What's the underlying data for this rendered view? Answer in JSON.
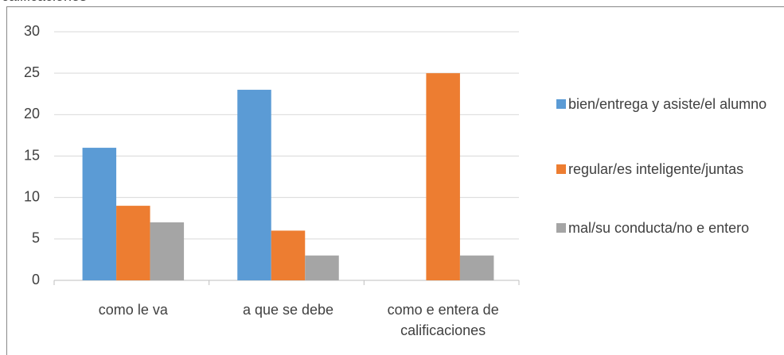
{
  "chart_data": {
    "type": "bar",
    "title": "calificaciones",
    "categories": [
      "como le va",
      "a que se debe",
      "como e entera de calificaciones"
    ],
    "series": [
      {
        "name": "bien/entrega y asiste/el alumno",
        "color": "#5b9bd5",
        "values": [
          16,
          23,
          0
        ]
      },
      {
        "name": "regular/es inteligente/juntas",
        "color": "#ed7d31",
        "values": [
          9,
          6,
          25
        ]
      },
      {
        "name": "mal/su conducta/no e entero",
        "color": "#a5a5a5",
        "values": [
          7,
          3,
          3
        ]
      }
    ],
    "ylim": [
      0,
      30
    ],
    "yticks": [
      0,
      5,
      10,
      15,
      20,
      25,
      30
    ],
    "grid": true,
    "legend": "right"
  }
}
